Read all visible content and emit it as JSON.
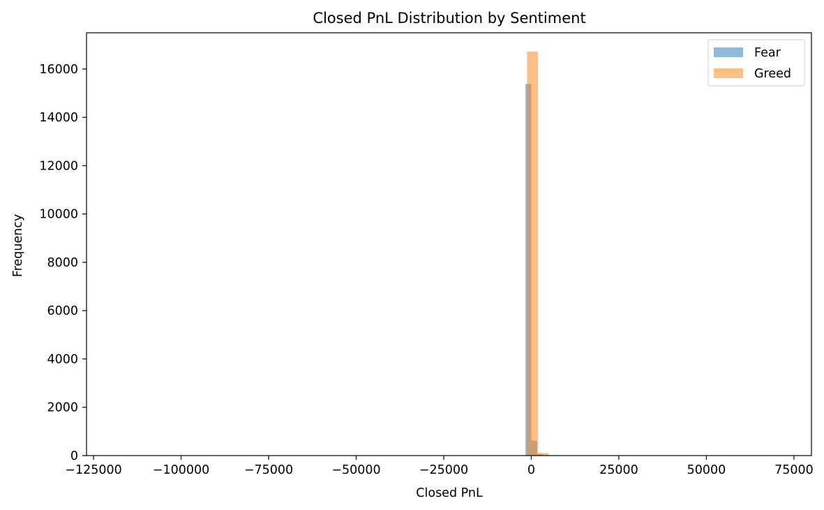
{
  "chart_data": {
    "type": "bar",
    "title": "Closed PnL Distribution by Sentiment",
    "xlabel": "Closed PnL",
    "ylabel": "Frequency",
    "xlim": [
      -127000,
      80000
    ],
    "ylim": [
      0,
      17500
    ],
    "xticks": [
      -125000,
      -100000,
      -75000,
      -50000,
      -25000,
      0,
      25000,
      50000,
      75000
    ],
    "xtick_labels": [
      "−125000",
      "−100000",
      "−75000",
      "−50000",
      "−25000",
      "0",
      "25000",
      "50000",
      "75000"
    ],
    "yticks": [
      0,
      2000,
      4000,
      6000,
      8000,
      10000,
      12000,
      14000,
      16000
    ],
    "ytick_labels": [
      "0",
      "2000",
      "4000",
      "6000",
      "8000",
      "10000",
      "12000",
      "14000",
      "16000"
    ],
    "grid": false,
    "legend_position": "top-right",
    "series": [
      {
        "name": "Fear",
        "color": "#1f77b4",
        "alpha": 0.5,
        "bins": [
          {
            "x0": -1650,
            "x1": 0,
            "count": 15380
          },
          {
            "x0": 0,
            "x1": 1650,
            "count": 620
          },
          {
            "x0": 1650,
            "x1": 3300,
            "count": 60
          },
          {
            "x0": 3300,
            "x1": 4950,
            "count": 20
          }
        ]
      },
      {
        "name": "Greed",
        "color": "#ff7f0e",
        "alpha": 0.5,
        "bins": [
          {
            "x0": -1200,
            "x1": 1900,
            "count": 16720
          },
          {
            "x0": 1900,
            "x1": 5000,
            "count": 110
          },
          {
            "x0": 5000,
            "x1": 8100,
            "count": 10
          }
        ]
      }
    ]
  }
}
